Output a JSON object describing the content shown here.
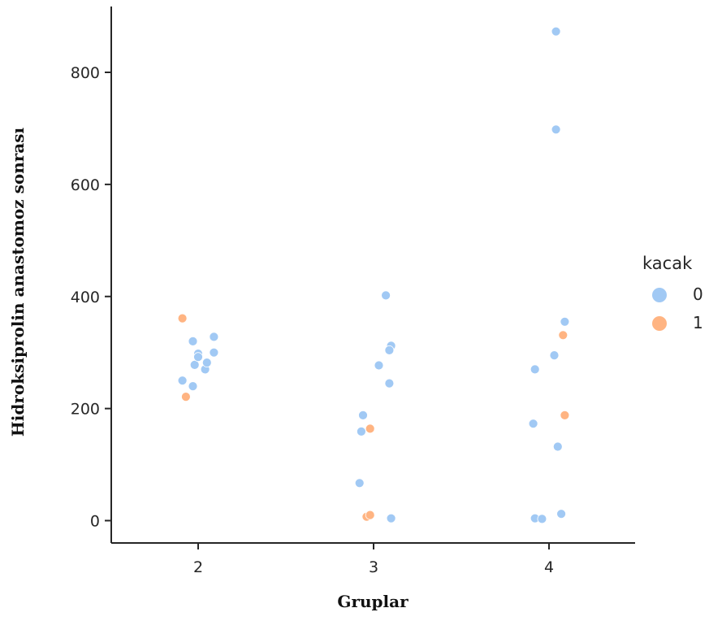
{
  "chart_data": {
    "type": "scatter",
    "subtype": "strip",
    "xlabel": "Gruplar",
    "ylabel": "Hidroksiprolin anastomoz sonrası",
    "categories": [
      "2",
      "3",
      "4"
    ],
    "ylim": [
      -40,
      920
    ],
    "yticks": [
      0,
      200,
      400,
      600,
      800
    ],
    "grid": false,
    "legend": {
      "title": "kacak",
      "placement": "right",
      "entries": [
        {
          "label": "0",
          "color": "#a1c9f4"
        },
        {
          "label": "1",
          "color": "#ffb482"
        }
      ]
    },
    "series": [
      {
        "name": "0",
        "color": "#a1c9f4",
        "points": [
          {
            "x": "2",
            "jitter": -0.09,
            "y": 250
          },
          {
            "x": "2",
            "jitter": -0.03,
            "y": 320
          },
          {
            "x": "2",
            "jitter": -0.02,
            "y": 278
          },
          {
            "x": "2",
            "jitter": -0.03,
            "y": 240
          },
          {
            "x": "2",
            "jitter": 0.0,
            "y": 298
          },
          {
            "x": "2",
            "jitter": 0.0,
            "y": 292
          },
          {
            "x": "2",
            "jitter": 0.04,
            "y": 270
          },
          {
            "x": "2",
            "jitter": 0.05,
            "y": 282
          },
          {
            "x": "2",
            "jitter": 0.09,
            "y": 328
          },
          {
            "x": "2",
            "jitter": 0.09,
            "y": 300
          },
          {
            "x": "3",
            "jitter": 0.07,
            "y": 402
          },
          {
            "x": "3",
            "jitter": 0.1,
            "y": 312
          },
          {
            "x": "3",
            "jitter": 0.09,
            "y": 304
          },
          {
            "x": "3",
            "jitter": 0.03,
            "y": 277
          },
          {
            "x": "3",
            "jitter": 0.09,
            "y": 245
          },
          {
            "x": "3",
            "jitter": -0.06,
            "y": 188
          },
          {
            "x": "3",
            "jitter": -0.07,
            "y": 159
          },
          {
            "x": "3",
            "jitter": -0.08,
            "y": 67
          },
          {
            "x": "3",
            "jitter": 0.1,
            "y": 4
          },
          {
            "x": "4",
            "jitter": 0.04,
            "y": 873
          },
          {
            "x": "4",
            "jitter": 0.04,
            "y": 698
          },
          {
            "x": "4",
            "jitter": 0.09,
            "y": 355
          },
          {
            "x": "4",
            "jitter": 0.03,
            "y": 295
          },
          {
            "x": "4",
            "jitter": -0.08,
            "y": 270
          },
          {
            "x": "4",
            "jitter": -0.09,
            "y": 173
          },
          {
            "x": "4",
            "jitter": 0.05,
            "y": 132
          },
          {
            "x": "4",
            "jitter": 0.07,
            "y": 12
          },
          {
            "x": "4",
            "jitter": -0.08,
            "y": 4
          },
          {
            "x": "4",
            "jitter": -0.04,
            "y": 3
          }
        ]
      },
      {
        "name": "1",
        "color": "#ffb482",
        "points": [
          {
            "x": "2",
            "jitter": -0.09,
            "y": 361
          },
          {
            "x": "2",
            "jitter": -0.07,
            "y": 221
          },
          {
            "x": "3",
            "jitter": -0.02,
            "y": 164
          },
          {
            "x": "3",
            "jitter": -0.04,
            "y": 7
          },
          {
            "x": "3",
            "jitter": -0.02,
            "y": 10
          },
          {
            "x": "4",
            "jitter": 0.08,
            "y": 331
          },
          {
            "x": "4",
            "jitter": 0.09,
            "y": 188
          }
        ]
      }
    ]
  }
}
